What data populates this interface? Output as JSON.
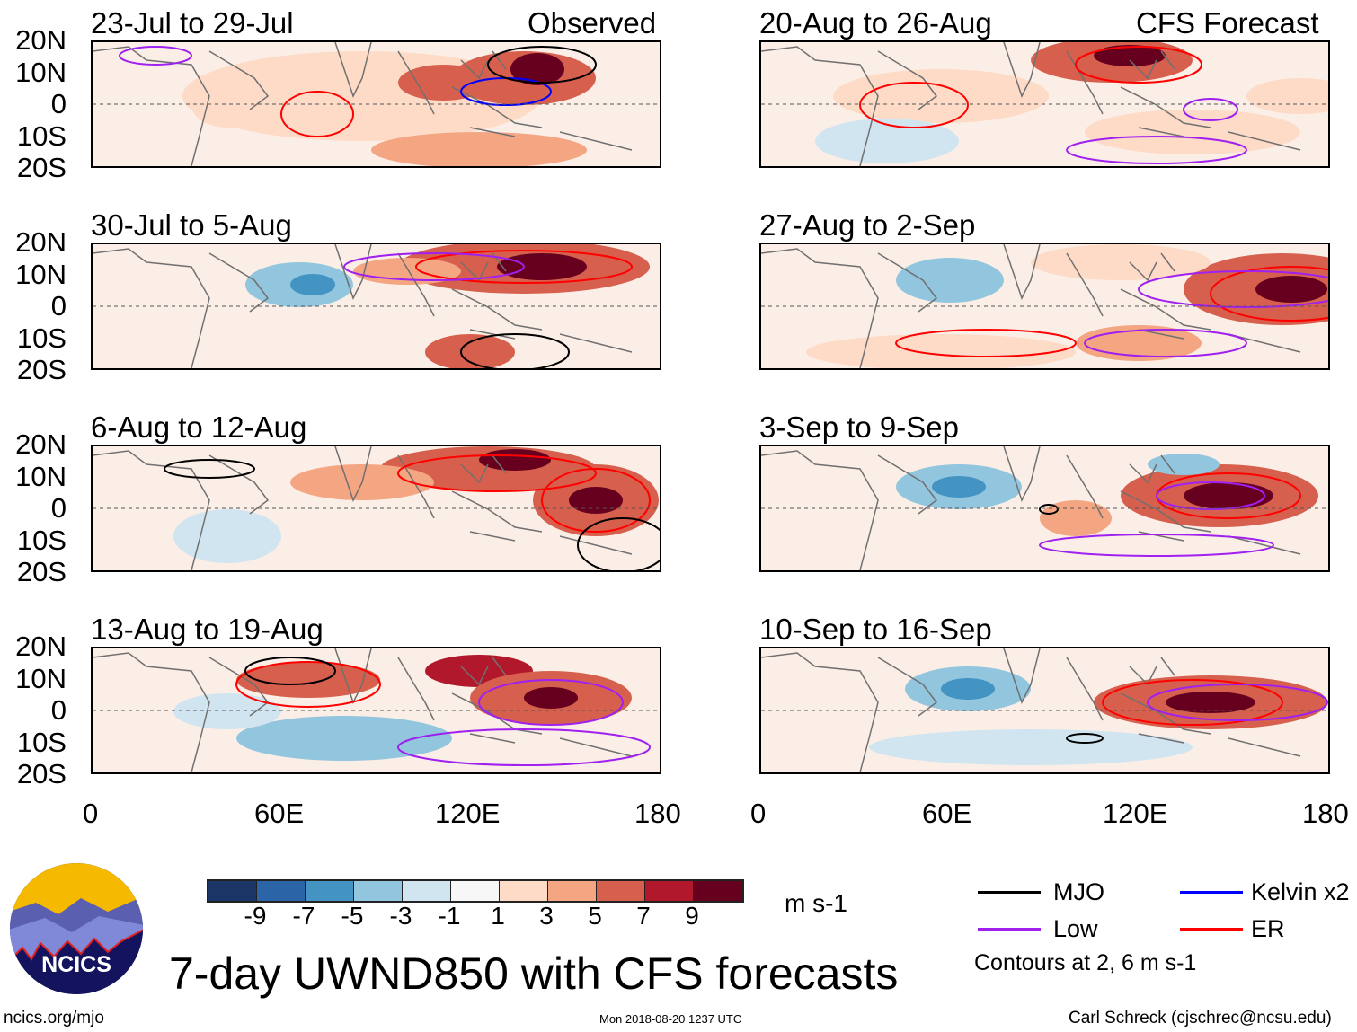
{
  "header": {
    "observed_label": "Observed",
    "forecast_label": "CFS Forecast"
  },
  "panels": [
    {
      "title": "23-Jul to 29-Jul",
      "column": "observed"
    },
    {
      "title": "30-Jul to 5-Aug",
      "column": "observed"
    },
    {
      "title": "6-Aug to 12-Aug",
      "column": "observed"
    },
    {
      "title": "13-Aug to 19-Aug",
      "column": "observed"
    },
    {
      "title": "20-Aug to 26-Aug",
      "column": "forecast"
    },
    {
      "title": "27-Aug to 2-Sep",
      "column": "forecast"
    },
    {
      "title": "3-Sep to 9-Sep",
      "column": "forecast"
    },
    {
      "title": "10-Sep to 16-Sep",
      "column": "forecast"
    }
  ],
  "axes": {
    "lat_labels": [
      "20N",
      "10N",
      "0",
      "10S",
      "20S"
    ],
    "lon_labels": [
      "0",
      "60E",
      "120E",
      "180"
    ]
  },
  "colorbar": {
    "colors": [
      "#1b3566",
      "#2c64a8",
      "#4393c3",
      "#92c5de",
      "#d1e5f0",
      "#f7f7f7",
      "#fddbc7",
      "#f4a582",
      "#d6604d",
      "#b2182b",
      "#67001f"
    ],
    "tick_labels": [
      "-9",
      "-7",
      "-5",
      "-3",
      "-1",
      "1",
      "3",
      "5",
      "7",
      "9"
    ],
    "units": "m s-1"
  },
  "legend": {
    "items": [
      {
        "label": "MJO",
        "color": "#000000"
      },
      {
        "label": "Kelvin x2",
        "color": "#0000ff"
      },
      {
        "label": "Low",
        "color": "#a020f0"
      },
      {
        "label": "ER",
        "color": "#ff0000"
      }
    ],
    "contours_note": "Contours at 2, 6 m s-1"
  },
  "footer": {
    "title": "7-day UWND850 with CFS forecasts",
    "logo_text": "NCICS",
    "url": "ncics.org/mjo",
    "timestamp": "Mon 2018-08-20 1237 UTC",
    "author": "Carl Schreck (cjschrec@ncsu.edu)"
  }
}
